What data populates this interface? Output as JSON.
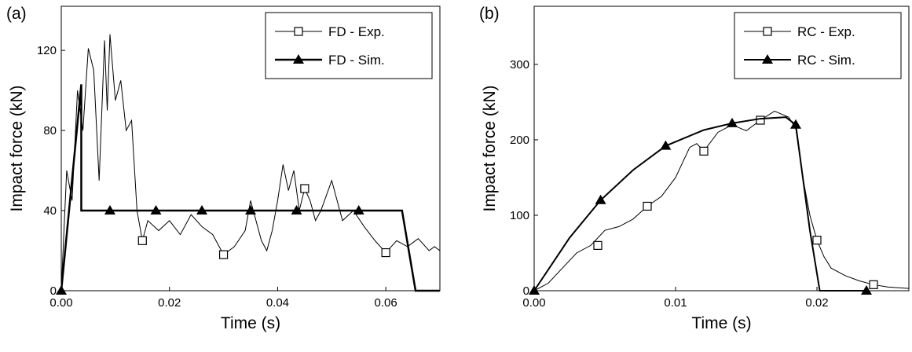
{
  "chart_data": [
    {
      "type": "line",
      "panel_label": "(a)",
      "x_label": "Time (s)",
      "y_label": "Impact force (kN)",
      "xlim": [
        0,
        0.07
      ],
      "ylim": [
        0,
        142
      ],
      "xticks": [
        {
          "value": 0,
          "label": "0.00"
        },
        {
          "value": 0.02,
          "label": "0.02"
        },
        {
          "value": 0.04,
          "label": "0.04"
        },
        {
          "value": 0.06,
          "label": "0.06"
        }
      ],
      "yticks": [
        0,
        40,
        80,
        120
      ],
      "legend": "top-right",
      "series": [
        {
          "name": "FD - Exp.",
          "color": "#000000",
          "marker": "square",
          "line_width": 1,
          "x": [
            0,
            0.001,
            0.002,
            0.003,
            0.004,
            0.005,
            0.006,
            0.007,
            0.008,
            0.0085,
            0.009,
            0.01,
            0.011,
            0.012,
            0.013,
            0.014,
            0.015,
            0.016,
            0.018,
            0.02,
            0.022,
            0.024,
            0.026,
            0.028,
            0.03,
            0.032,
            0.034,
            0.035,
            0.036,
            0.037,
            0.038,
            0.039,
            0.04,
            0.041,
            0.042,
            0.043,
            0.044,
            0.045,
            0.046,
            0.047,
            0.048,
            0.05,
            0.052,
            0.054,
            0.056,
            0.058,
            0.06,
            0.062,
            0.064,
            0.066,
            0.068,
            0.069,
            0.07
          ],
          "values": [
            0,
            60,
            45,
            100,
            80,
            121,
            110,
            55,
            125,
            90,
            128,
            95,
            105,
            80,
            85,
            40,
            25,
            35,
            30,
            35,
            28,
            38,
            32,
            28,
            18,
            22,
            30,
            45,
            35,
            25,
            20,
            30,
            45,
            63,
            50,
            60,
            40,
            51,
            45,
            35,
            40,
            55,
            35,
            40,
            32,
            25,
            19,
            25,
            22,
            26,
            20,
            22,
            20
          ],
          "marker_x": [
            0.015,
            0.03,
            0.045,
            0.06
          ],
          "marker_values": [
            25,
            18,
            51,
            19
          ]
        },
        {
          "name": "FD - Sim.",
          "color": "#000000",
          "marker": "triangle",
          "line_width": 2.5,
          "x": [
            0,
            0.0037,
            0.0037,
            0.063,
            0.0655,
            0.07
          ],
          "values": [
            0,
            103,
            40,
            40,
            0,
            0
          ],
          "marker_x": [
            0,
            0.009,
            0.0175,
            0.026,
            0.035,
            0.0435,
            0.055
          ],
          "marker_values": [
            0,
            40,
            40,
            40,
            40,
            40,
            40
          ]
        }
      ]
    },
    {
      "type": "line",
      "panel_label": "(b)",
      "x_label": "Time (s)",
      "y_label": "Impact force (kN)",
      "xlim": [
        0,
        0.0265
      ],
      "ylim": [
        0,
        377
      ],
      "xticks": [
        {
          "value": 0,
          "label": "0.00"
        },
        {
          "value": 0.01,
          "label": "0.01"
        },
        {
          "value": 0.02,
          "label": "0.02"
        }
      ],
      "yticks": [
        0,
        100,
        200,
        300
      ],
      "legend": "top-right",
      "series": [
        {
          "name": "RC - Exp.",
          "color": "#000000",
          "marker": "square",
          "line_width": 1,
          "x": [
            0,
            0.001,
            0.002,
            0.003,
            0.004,
            0.005,
            0.006,
            0.007,
            0.008,
            0.009,
            0.01,
            0.011,
            0.0115,
            0.012,
            0.013,
            0.014,
            0.015,
            0.016,
            0.017,
            0.018,
            0.0185,
            0.019,
            0.0195,
            0.02,
            0.0205,
            0.021,
            0.022,
            0.023,
            0.024,
            0.025,
            0.0265
          ],
          "values": [
            0,
            10,
            30,
            50,
            60,
            80,
            85,
            95,
            112,
            125,
            150,
            190,
            195,
            185,
            210,
            220,
            212,
            226,
            238,
            230,
            215,
            150,
            100,
            67,
            45,
            30,
            20,
            13,
            8,
            5,
            3
          ],
          "marker_x": [
            0.0045,
            0.008,
            0.012,
            0.016,
            0.02,
            0.024
          ],
          "marker_values": [
            60,
            112,
            185,
            226,
            67,
            8
          ]
        },
        {
          "name": "RC - Sim.",
          "color": "#000000",
          "marker": "triangle",
          "line_width": 2,
          "x": [
            0,
            0.0025,
            0.0047,
            0.007,
            0.0093,
            0.012,
            0.014,
            0.016,
            0.0178,
            0.0185,
            0.019,
            0.0195,
            0.0202,
            0.0235
          ],
          "values": [
            0,
            70,
            120,
            160,
            192,
            213,
            222,
            228,
            230,
            220,
            150,
            80,
            0,
            0
          ],
          "marker_x": [
            0,
            0.0047,
            0.0093,
            0.014,
            0.0185,
            0.0235
          ],
          "marker_values": [
            0,
            120,
            192,
            222,
            220,
            0
          ]
        }
      ]
    }
  ]
}
